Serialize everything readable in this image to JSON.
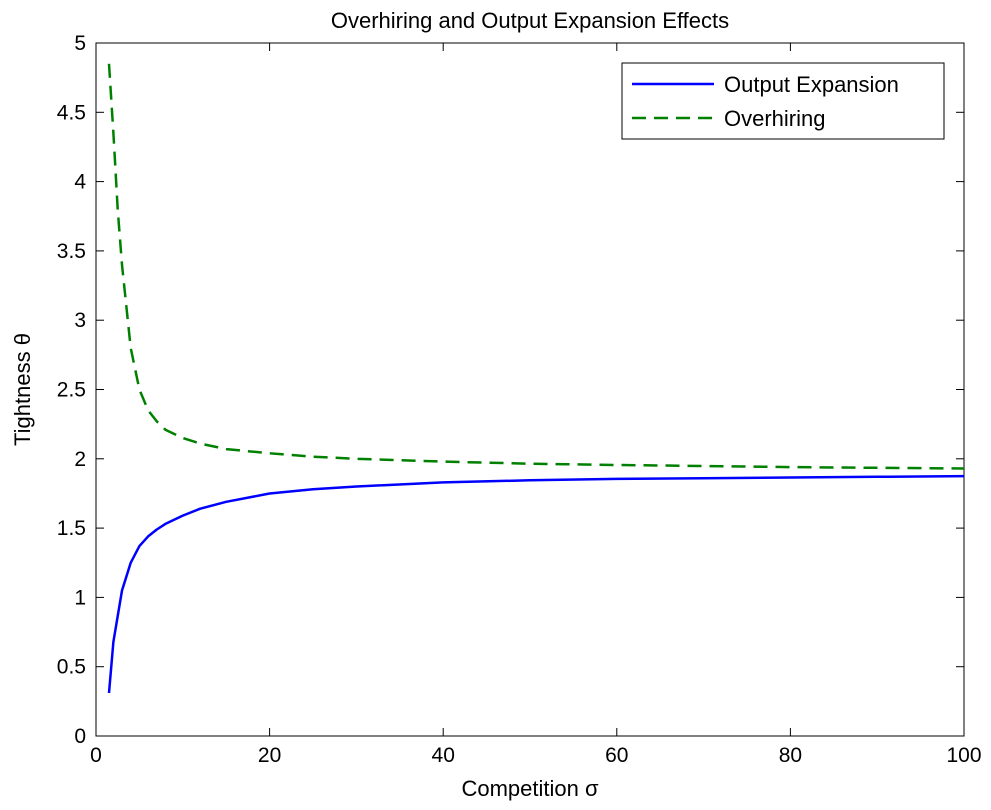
{
  "chart_data": {
    "type": "line",
    "title": "Overhiring and Output Expansion Effects",
    "xlabel": "Competition σ",
    "ylabel": "Tightness θ",
    "xlim": [
      0,
      100
    ],
    "ylim": [
      0,
      5
    ],
    "xticks": [
      0,
      20,
      40,
      60,
      80,
      100
    ],
    "xtick_labels": [
      "0",
      "20",
      "40",
      "60",
      "80",
      "100"
    ],
    "yticks": [
      0,
      0.5,
      1,
      1.5,
      2,
      2.5,
      3,
      3.5,
      4,
      4.5,
      5
    ],
    "ytick_labels": [
      "0",
      "0.5",
      "1",
      "1.5",
      "2",
      "2.5",
      "3",
      "3.5",
      "4",
      "4.5",
      "5"
    ],
    "grid": false,
    "legend_position": "top-right",
    "series": [
      {
        "name": "Output Expansion",
        "color": "#0000ff",
        "style": "solid",
        "x": [
          1.5,
          2,
          3,
          4,
          5,
          6,
          7,
          8,
          10,
          12,
          15,
          20,
          25,
          30,
          40,
          50,
          60,
          70,
          80,
          90,
          100
        ],
        "y": [
          0.31,
          0.68,
          1.05,
          1.25,
          1.37,
          1.44,
          1.49,
          1.53,
          1.59,
          1.64,
          1.69,
          1.75,
          1.78,
          1.8,
          1.83,
          1.845,
          1.855,
          1.86,
          1.865,
          1.87,
          1.875
        ]
      },
      {
        "name": "Overhiring",
        "color": "#008000",
        "style": "dashed",
        "x": [
          1.5,
          2,
          2.5,
          3,
          4,
          5,
          6,
          7,
          8,
          10,
          12,
          15,
          20,
          25,
          30,
          40,
          50,
          60,
          70,
          80,
          90,
          100
        ],
        "y": [
          4.85,
          4.35,
          3.8,
          3.4,
          2.8,
          2.5,
          2.35,
          2.27,
          2.21,
          2.15,
          2.11,
          2.07,
          2.04,
          2.015,
          2.0,
          1.98,
          1.965,
          1.955,
          1.948,
          1.94,
          1.935,
          1.93
        ]
      }
    ]
  }
}
